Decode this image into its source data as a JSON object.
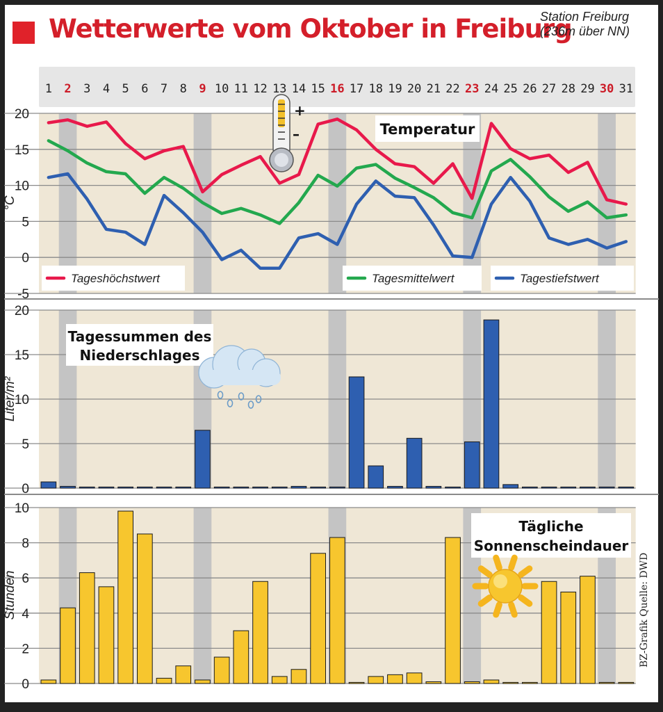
{
  "header": {
    "title": "Wetterwerte vom Oktober in Freiburg",
    "station_line1": "Station Freiburg",
    "station_line2": "(236m über NN)"
  },
  "credit": "BZ-Grafik  Quelle: DWD",
  "colors": {
    "red": "#e8194b",
    "green": "#23a84e",
    "blue": "#2e5fb0",
    "yellow": "#f7c62e",
    "weekend_red": "#cc1b27",
    "panel_bg": "#efe7d6",
    "weekend_col": "#c4c4c4"
  },
  "chart_data": [
    {
      "type": "line",
      "title": "Temperatur",
      "ylabel": "°C",
      "ylim": [
        -5,
        20
      ],
      "yticks": [
        "-5",
        "0",
        "5",
        "10",
        "15",
        "20"
      ],
      "days": [
        "1",
        "2",
        "3",
        "4",
        "5",
        "6",
        "7",
        "8",
        "9",
        "10",
        "11",
        "12",
        "13",
        "14",
        "15",
        "16",
        "17",
        "18",
        "19",
        "20",
        "21",
        "22",
        "23",
        "24",
        "25",
        "26",
        "27",
        "28",
        "29",
        "30",
        "31"
      ],
      "weekend_days": [
        "2",
        "9",
        "16",
        "23",
        "30"
      ],
      "legend": {
        "max": "Tageshöchstwert",
        "mean": "Tagesmittelwert",
        "min": "Tagestiefstwert"
      },
      "series": [
        {
          "name": "Tageshöchstwert",
          "key": "max",
          "values": [
            18.7,
            19.1,
            18.2,
            18.8,
            15.8,
            13.7,
            14.8,
            15.4,
            9.1,
            11.5,
            12.8,
            14.0,
            10.3,
            11.5,
            18.5,
            19.2,
            17.7,
            15.0,
            13.0,
            12.6,
            10.3,
            13.0,
            8.2,
            18.6,
            15.1,
            13.7,
            14.2,
            11.8,
            13.2,
            8.0,
            7.4
          ]
        },
        {
          "name": "Tagesmittelwert",
          "key": "mean",
          "values": [
            16.2,
            14.8,
            13.1,
            11.9,
            11.6,
            8.9,
            11.1,
            9.6,
            7.6,
            6.1,
            6.8,
            5.9,
            4.7,
            7.6,
            11.4,
            9.9,
            12.4,
            12.9,
            11.0,
            9.7,
            8.3,
            6.2,
            5.5,
            12.0,
            13.6,
            11.2,
            8.4,
            6.4,
            7.7,
            5.5,
            5.9
          ]
        },
        {
          "name": "Tagestiefstwert",
          "key": "min",
          "values": [
            11.1,
            11.6,
            8.1,
            3.9,
            3.5,
            1.8,
            8.6,
            6.2,
            3.5,
            -0.3,
            1.0,
            -1.5,
            -1.5,
            2.7,
            3.3,
            1.8,
            7.4,
            10.6,
            8.5,
            8.3,
            4.5,
            0.2,
            0.0,
            7.4,
            11.1,
            7.8,
            2.7,
            1.8,
            2.5,
            1.3,
            2.2
          ]
        }
      ]
    },
    {
      "type": "bar",
      "title": "Tagessummen des Niederschlages",
      "ylabel": "Liter/m²",
      "ylim": [
        0,
        20
      ],
      "yticks": [
        "0",
        "5",
        "10",
        "15",
        "20"
      ],
      "categories": [
        "1",
        "2",
        "3",
        "4",
        "5",
        "6",
        "7",
        "8",
        "9",
        "10",
        "11",
        "12",
        "13",
        "14",
        "15",
        "16",
        "17",
        "18",
        "19",
        "20",
        "21",
        "22",
        "23",
        "24",
        "25",
        "26",
        "27",
        "28",
        "29",
        "30",
        "31"
      ],
      "values": [
        0.7,
        0.2,
        0,
        0.1,
        0.1,
        0.1,
        0.1,
        0,
        6.5,
        0.1,
        0,
        0.1,
        0,
        0.2,
        0.1,
        0.1,
        12.5,
        2.5,
        0.2,
        5.6,
        0.2,
        0.1,
        5.2,
        18.9,
        0.4,
        0.1,
        0.1,
        0.1,
        0.1,
        0.1,
        0
      ]
    },
    {
      "type": "bar",
      "title": "Tägliche Sonnenscheindauer",
      "ylabel": "Stunden",
      "ylim": [
        0,
        10
      ],
      "yticks": [
        "0",
        "2",
        "4",
        "6",
        "8",
        "10"
      ],
      "categories": [
        "1",
        "2",
        "3",
        "4",
        "5",
        "6",
        "7",
        "8",
        "9",
        "10",
        "11",
        "12",
        "13",
        "14",
        "15",
        "16",
        "17",
        "18",
        "19",
        "20",
        "21",
        "22",
        "23",
        "24",
        "25",
        "26",
        "27",
        "28",
        "29",
        "30",
        "31"
      ],
      "values": [
        0.2,
        4.3,
        6.3,
        5.5,
        9.8,
        8.5,
        0.3,
        1.0,
        0.2,
        1.5,
        3.0,
        5.8,
        0.4,
        0.8,
        7.4,
        8.3,
        0,
        0.4,
        0.5,
        0.6,
        0.1,
        8.3,
        0.1,
        0.2,
        0,
        0,
        5.8,
        5.2,
        6.1,
        0,
        0
      ]
    }
  ]
}
